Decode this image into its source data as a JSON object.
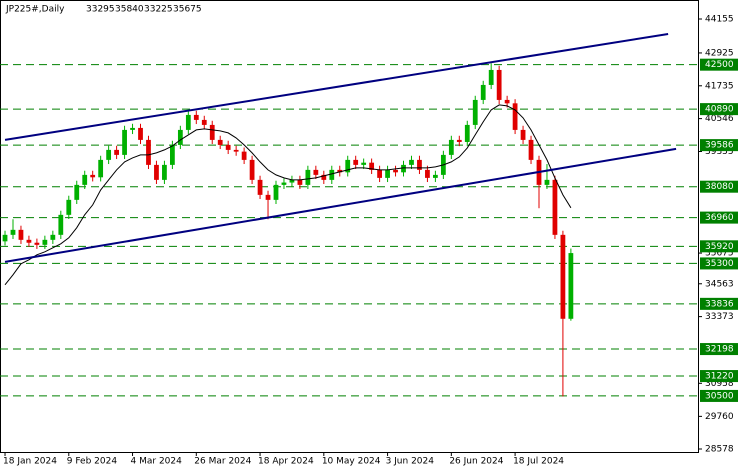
{
  "chart_data": {
    "type": "candlestick",
    "title": "JP225#,Daily",
    "categories": [
      "18 Jan 2024",
      null,
      null,
      null,
      null,
      null,
      null,
      null,
      "9 Feb 2024",
      null,
      null,
      null,
      null,
      null,
      null,
      null,
      "4 Mar 2024",
      null,
      null,
      null,
      null,
      null,
      null,
      null,
      "26 Mar 2024",
      null,
      null,
      null,
      null,
      null,
      null,
      null,
      "18 Apr 2024",
      null,
      null,
      null,
      null,
      null,
      null,
      null,
      "10 May 2024",
      null,
      null,
      null,
      null,
      null,
      null,
      null,
      "3 Jun 2024",
      null,
      null,
      null,
      null,
      null,
      null,
      null,
      "26 Jun 2024",
      null,
      null,
      null,
      null,
      null,
      null,
      null,
      "18 Jul 2024",
      null,
      null,
      null,
      null,
      null,
      null,
      null
    ],
    "open": [
      36100,
      36336,
      36517,
      36155,
      36050,
      35974,
      36155,
      36336,
      37060,
      37603,
      38146,
      38508,
      38420,
      39051,
      39413,
      39232,
      40137,
      40209,
      39775,
      38870,
      38327,
      38870,
      39594,
      40137,
      40680,
      40499,
      40318,
      39775,
      39594,
      39413,
      39350,
      39051,
      38327,
      37784,
      37603,
      38146,
      38230,
      38327,
      38146,
      38689,
      38508,
      38327,
      38689,
      38600,
      39051,
      38870,
      38950,
      38689,
      38399,
      38689,
      38600,
      38870,
      39051,
      38689,
      38399,
      38508,
      39232,
      39775,
      39700,
      40318,
      41223,
      41766,
      42309,
      41223,
      41100,
      40137,
      39775,
      39051,
      38146,
      38327,
      36336,
      33295
    ],
    "high": [
      36486,
      36900,
      36667,
      36305,
      36200,
      36305,
      36486,
      37210,
      37753,
      38296,
      38658,
      38658,
      39201,
      39563,
      39563,
      40287,
      40359,
      40359,
      39925,
      39020,
      39020,
      39744,
      40287,
      40830,
      40830,
      40649,
      40468,
      39925,
      39744,
      39563,
      39500,
      39201,
      38477,
      37934,
      38296,
      38380,
      38477,
      38477,
      38839,
      38839,
      38658,
      38839,
      38839,
      39201,
      39201,
      39100,
      39100,
      38839,
      38839,
      38839,
      39020,
      39201,
      39201,
      38839,
      38658,
      39382,
      39925,
      39925,
      40468,
      41373,
      41916,
      42550,
      42459,
      41373,
      41250,
      40287,
      39925,
      39201,
      38900,
      38477,
      36486,
      35840
    ],
    "low": [
      35950,
      36186,
      36005,
      35900,
      35824,
      35824,
      36005,
      36186,
      36910,
      37453,
      37996,
      38270,
      38270,
      38901,
      39082,
      39082,
      39987,
      39625,
      38720,
      38177,
      38177,
      38720,
      39444,
      39987,
      40349,
      40168,
      39625,
      39444,
      39263,
      39200,
      38901,
      38177,
      37634,
      36900,
      37453,
      37996,
      38080,
      37996,
      37996,
      38358,
      38177,
      38177,
      38450,
      38450,
      38720,
      38720,
      38539,
      38249,
      38249,
      38450,
      38450,
      38720,
      38539,
      38249,
      38249,
      38358,
      39082,
      39550,
      39550,
      40168,
      41073,
      41616,
      41073,
      40950,
      39987,
      39625,
      38901,
      37300,
      37996,
      36186,
      30480,
      33225
    ],
    "close": [
      36336,
      36517,
      36155,
      36050,
      35974,
      36155,
      36336,
      37060,
      37603,
      38146,
      38508,
      38420,
      39051,
      39413,
      39232,
      40137,
      40209,
      39775,
      38870,
      38327,
      38870,
      39594,
      40137,
      40680,
      40499,
      40318,
      39775,
      39594,
      39413,
      39350,
      39051,
      38327,
      37784,
      37603,
      38146,
      38230,
      38327,
      38146,
      38689,
      38508,
      38327,
      38689,
      38600,
      39051,
      38870,
      38950,
      38689,
      38399,
      38689,
      38600,
      38870,
      39051,
      38689,
      38399,
      38508,
      39232,
      39775,
      39700,
      40318,
      41223,
      41766,
      42309,
      41223,
      41100,
      40137,
      39775,
      39051,
      38146,
      38327,
      36336,
      33295,
      35675
    ],
    "up_color": "#00b000",
    "down_color": "#e00000",
    "ma": {
      "color": "#000000",
      "values": [
        34526,
        34888,
        35286,
        35431,
        35612,
        35721,
        35865,
        36010,
        36228,
        36589,
        37060,
        37422,
        37965,
        38327,
        38689,
        38979,
        39123,
        39232,
        39232,
        39305,
        39413,
        39558,
        39775,
        39956,
        40137,
        40173,
        40137,
        40101,
        40028,
        39847,
        39594,
        39305,
        38979,
        38689,
        38508,
        38399,
        38327,
        38327,
        38363,
        38399,
        38471,
        38544,
        38616,
        38689,
        38761,
        38761,
        38725,
        38689,
        38689,
        38725,
        38761,
        38761,
        38761,
        38761,
        38797,
        38870,
        38979,
        39160,
        39485,
        39956,
        40427,
        40861,
        41042,
        41006,
        40861,
        40571,
        40137,
        39594,
        39051,
        38399,
        37784,
        37314
      ]
    },
    "levels": {
      "color": "#008000",
      "values": [
        42500,
        40890,
        39586,
        38080,
        36960,
        35920,
        35300,
        33836,
        32198,
        31220,
        30500
      ]
    },
    "trendlines": {
      "color": "#000080",
      "lines": [
        {
          "x": [
            0,
            83.2
          ],
          "y": [
            39775,
            43612
          ]
        },
        {
          "x": [
            0,
            84.2
          ],
          "y": [
            35358,
            39449
          ]
        }
      ]
    },
    "xlim": [
      -0.63,
      86.95
    ],
    "ylim": [
      28469,
      44843
    ],
    "yticks": [
      44155,
      42925,
      41735,
      40546,
      39355,
      35675,
      34563,
      33373,
      30958,
      29760,
      28578
    ]
  }
}
